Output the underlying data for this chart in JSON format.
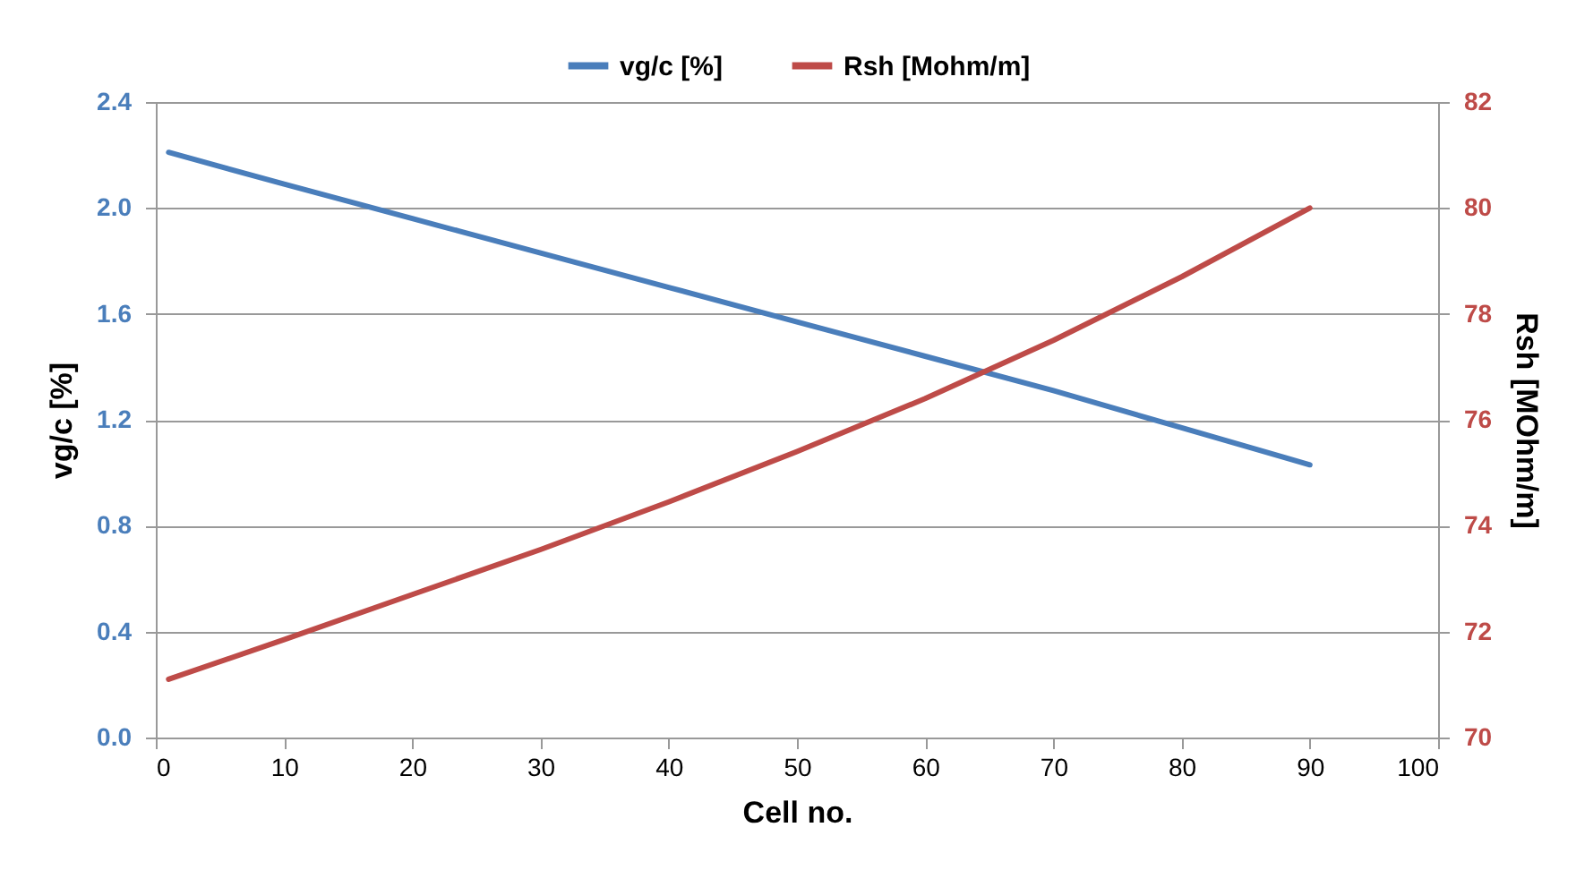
{
  "chart_data": {
    "type": "line",
    "xlabel": "Cell no.",
    "ylabel": "vg/c [%]",
    "y2label": "Rsh [MOhm/m]",
    "legend": "top",
    "grid": "y",
    "xlim": [
      0,
      100
    ],
    "xticks": [
      0,
      10,
      20,
      30,
      40,
      50,
      60,
      70,
      80,
      90,
      100
    ],
    "ylim": [
      0,
      2.4
    ],
    "yticks": [
      {
        "value": 0,
        "label": "0.0"
      },
      {
        "value": 0.4,
        "label": "0.4"
      },
      {
        "value": 0.8,
        "label": "0.8"
      },
      {
        "value": 1.2,
        "label": "1.2"
      },
      {
        "value": 1.6,
        "label": "1.6"
      },
      {
        "value": 2,
        "label": "2.0"
      },
      {
        "value": 2.4,
        "label": "2.4"
      }
    ],
    "y2lim": [
      70,
      82
    ],
    "y2ticks": [
      70,
      72,
      74,
      76,
      78,
      80,
      82
    ],
    "series": [
      {
        "name": "vg/c [%]",
        "color": "#4a7ebb",
        "x": [
          1,
          10,
          20,
          30,
          40,
          50,
          60,
          70,
          80,
          90
        ],
        "values": [
          2.21,
          2.09,
          1.96,
          1.83,
          1.7,
          1.57,
          1.44,
          1.31,
          1.17,
          1.03
        ]
      },
      {
        "name": "Rsh [Mohm/m]",
        "color": "#be4b48",
        "axis": "y2",
        "x": [
          1,
          10,
          20,
          30,
          40,
          50,
          60,
          70,
          80,
          90
        ],
        "values": [
          71.1,
          71.85,
          72.7,
          73.55,
          74.45,
          75.4,
          76.4,
          77.5,
          78.7,
          80.0
        ]
      }
    ]
  }
}
